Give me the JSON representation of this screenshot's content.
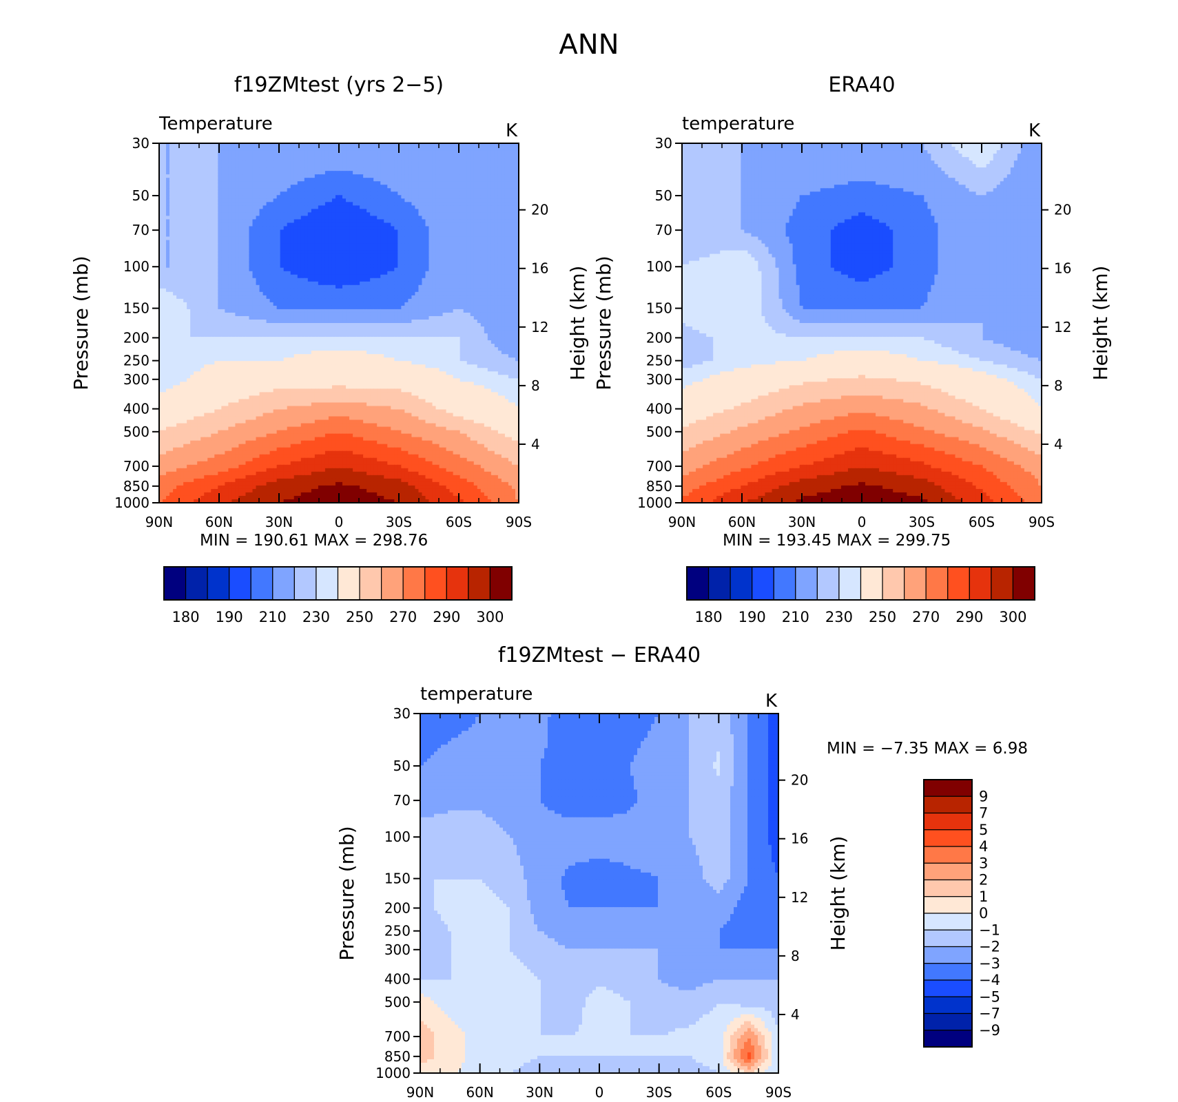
{
  "figure": {
    "title": "ANN"
  },
  "colors": {
    "abs_scale": [
      "#00007f",
      "#0022aa",
      "#0033cc",
      "#1a4dff",
      "#4278ff",
      "#7fa4ff",
      "#b2c8ff",
      "#d6e6ff",
      "#ffe8d6",
      "#ffc8ad",
      "#ffa27a",
      "#ff7847",
      "#ff501f",
      "#e6330d",
      "#b82400",
      "#800000"
    ],
    "diff_scale": [
      "#00007f",
      "#0022aa",
      "#0033cc",
      "#1a4dff",
      "#4278ff",
      "#7fa4ff",
      "#b2c8ff",
      "#d6e6ff",
      "#ffe8d6",
      "#ffc8ad",
      "#ffa27a",
      "#ff7847",
      "#ff501f",
      "#e6330d",
      "#b82400",
      "#800000"
    ]
  },
  "chart_data": [
    {
      "type": "heatmap",
      "id": "model",
      "title": "f19ZMtest (yrs 2−5)",
      "subtitle": "Temperature",
      "units": "K",
      "ylabel": "Pressure (mb)",
      "y2label": "Height (km)",
      "x_ticks": [
        "90N",
        "60N",
        "30N",
        "0",
        "30S",
        "60S",
        "90S"
      ],
      "y_ticks": [
        30,
        50,
        70,
        100,
        150,
        200,
        250,
        300,
        400,
        500,
        700,
        850,
        1000
      ],
      "y2_ticks": [
        4,
        8,
        12,
        16,
        20
      ],
      "stats": "MIN =  190.61   MAX =  298.76",
      "levels": [
        180,
        190,
        210,
        230,
        250,
        270,
        290,
        300
      ],
      "pressure": [
        30,
        50,
        70,
        100,
        150,
        200,
        250,
        300,
        400,
        500,
        700,
        850,
        1000
      ],
      "lat": [
        90,
        60,
        30,
        0,
        -30,
        -60,
        -90
      ],
      "values": [
        [
          205,
          205,
          205,
          205,
          205,
          205,
          200
        ],
        [
          205,
          205,
          200,
          195,
          200,
          205,
          200
        ],
        [
          205,
          205,
          195,
          190,
          195,
          205,
          200
        ],
        [
          205,
          205,
          195,
          190,
          195,
          205,
          200
        ],
        [
          215,
          205,
          200,
          200,
          200,
          205,
          200
        ],
        [
          210,
          210,
          210,
          210,
          210,
          210,
          200
        ],
        [
          210,
          215,
          215,
          220,
          215,
          210,
          205
        ],
        [
          210,
          220,
          225,
          225,
          225,
          215,
          210
        ],
        [
          220,
          230,
          240,
          245,
          240,
          225,
          215
        ],
        [
          230,
          240,
          250,
          260,
          250,
          240,
          225
        ],
        [
          245,
          255,
          270,
          280,
          270,
          255,
          240
        ],
        [
          255,
          270,
          285,
          292,
          285,
          265,
          248
        ],
        [
          260,
          278,
          290,
          297,
          290,
          272,
          250
        ]
      ]
    },
    {
      "type": "heatmap",
      "id": "obs",
      "title": "ERA40",
      "subtitle": "temperature",
      "units": "K",
      "ylabel": "Pressure (mb)",
      "y2label": "Height (km)",
      "x_ticks": [
        "90N",
        "60N",
        "30N",
        "0",
        "30S",
        "60S",
        "90S"
      ],
      "y_ticks": [
        30,
        50,
        70,
        100,
        150,
        200,
        250,
        300,
        400,
        500,
        700,
        850,
        1000
      ],
      "y2_ticks": [
        4,
        8,
        12,
        16,
        20
      ],
      "stats": "MIN =  193.45   MAX =  299.75",
      "levels": [
        180,
        190,
        210,
        230,
        250,
        270,
        290,
        300
      ],
      "pressure": [
        30,
        50,
        70,
        100,
        150,
        200,
        250,
        300,
        400,
        500,
        700,
        850,
        1000
      ],
      "lat": [
        90,
        60,
        30,
        0,
        -30,
        -60,
        -90
      ],
      "values": [
        [
          205,
          205,
          205,
          205,
          205,
          215,
          200
        ],
        [
          205,
          205,
          200,
          198,
          200,
          205,
          200
        ],
        [
          205,
          205,
          198,
          192,
          198,
          205,
          200
        ],
        [
          210,
          215,
          198,
          192,
          198,
          205,
          200
        ],
        [
          212,
          215,
          200,
          200,
          200,
          205,
          200
        ],
        [
          208,
          212,
          210,
          210,
          210,
          205,
          200
        ],
        [
          208,
          212,
          215,
          220,
          215,
          210,
          205
        ],
        [
          212,
          220,
          228,
          232,
          228,
          218,
          210
        ],
        [
          222,
          232,
          242,
          248,
          242,
          230,
          215
        ],
        [
          232,
          242,
          252,
          262,
          252,
          242,
          228
        ],
        [
          245,
          258,
          270,
          280,
          272,
          260,
          245
        ],
        [
          255,
          270,
          285,
          292,
          285,
          268,
          250
        ],
        [
          262,
          280,
          292,
          298,
          292,
          275,
          255
        ]
      ]
    },
    {
      "type": "heatmap",
      "id": "diff",
      "title": "f19ZMtest − ERA40",
      "subtitle": "temperature",
      "units": "K",
      "ylabel": "Pressure (mb)",
      "y2label": "Height (km)",
      "x_ticks": [
        "90N",
        "60N",
        "30N",
        "0",
        "30S",
        "60S",
        "90S"
      ],
      "y_ticks": [
        30,
        50,
        70,
        100,
        150,
        200,
        250,
        300,
        400,
        500,
        700,
        850,
        1000
      ],
      "y2_ticks": [
        4,
        8,
        12,
        16,
        20
      ],
      "stats": "MIN =    −7.35    MAX =     6.98",
      "levels": [
        -9,
        -7,
        -5,
        -4,
        -3,
        -2,
        -1,
        0,
        1,
        2,
        3,
        4,
        5,
        7,
        9
      ],
      "levels_labels": [
        "9",
        "7",
        "5",
        "4",
        "3",
        "2",
        "1",
        "0",
        "−1",
        "−2",
        "−3",
        "−4",
        "−5",
        "−7",
        "−9"
      ],
      "pressure": [
        30,
        50,
        70,
        100,
        150,
        200,
        250,
        300,
        400,
        500,
        700,
        850,
        1000
      ],
      "lat": [
        90,
        75,
        60,
        45,
        30,
        15,
        0,
        -15,
        -30,
        -45,
        -60,
        -75,
        -90
      ],
      "values": [
        [
          -4,
          -3.5,
          -3,
          -3,
          -2.5,
          -4,
          -4,
          -3.5,
          -3,
          -2,
          -1.5,
          -3,
          -4.5
        ],
        [
          -3,
          -2.5,
          -2.5,
          -2.5,
          -3,
          -3.5,
          -3.5,
          -3,
          -2.5,
          -2,
          -0.8,
          -3,
          -4.5
        ],
        [
          -2.5,
          -2.2,
          -2.2,
          -2.5,
          -3,
          -3.5,
          -3.5,
          -3.2,
          -2.5,
          -2,
          -1.5,
          -3,
          -4.5
        ],
        [
          -1.5,
          -1.5,
          -1.5,
          -2,
          -2.5,
          -2.5,
          -2.5,
          -2.5,
          -2.5,
          -2,
          -1.5,
          -3,
          -4.5
        ],
        [
          -1,
          -1,
          -1,
          -1.5,
          -2.5,
          -3.2,
          -3.5,
          -3.2,
          -3,
          -2.5,
          -1.5,
          -3,
          -4
        ],
        [
          -1.5,
          -0.5,
          -0.5,
          -1,
          -2.5,
          -3,
          -3,
          -3,
          -3,
          -3,
          -2.5,
          -3.5,
          -4
        ],
        [
          -2,
          -1,
          -0.5,
          -1,
          -2,
          -2.5,
          -2.5,
          -2.5,
          -2.5,
          -2.5,
          -3,
          -3.5,
          -3.5
        ],
        [
          -1.5,
          -1,
          -0.5,
          -1,
          -1.5,
          -2,
          -2,
          -2,
          -2,
          -2.5,
          -3,
          -3,
          -3
        ],
        [
          -1,
          -1,
          -0.5,
          -0.5,
          -1,
          -1.5,
          -1.2,
          -1.5,
          -2,
          -2.5,
          -2,
          -2,
          -2
        ],
        [
          0.5,
          -0.5,
          -0.5,
          -0.5,
          -1,
          -1.5,
          -0.5,
          -1,
          -1.5,
          -1.5,
          -1,
          -1.5,
          -1.5
        ],
        [
          1.5,
          0.5,
          -0.5,
          -0.5,
          -1,
          -1,
          -0.8,
          -1,
          -1,
          -0.8,
          -0.5,
          3,
          -1
        ],
        [
          1.5,
          0.5,
          -0.5,
          -0.5,
          -1,
          -1,
          -1,
          -1,
          -1,
          -1,
          -0.5,
          4.5,
          -1
        ],
        [
          0.5,
          0.2,
          -0.5,
          -1,
          -1.5,
          -1.5,
          -1.5,
          -1.5,
          -1.5,
          -1.5,
          -1,
          1,
          -1
        ]
      ]
    }
  ]
}
